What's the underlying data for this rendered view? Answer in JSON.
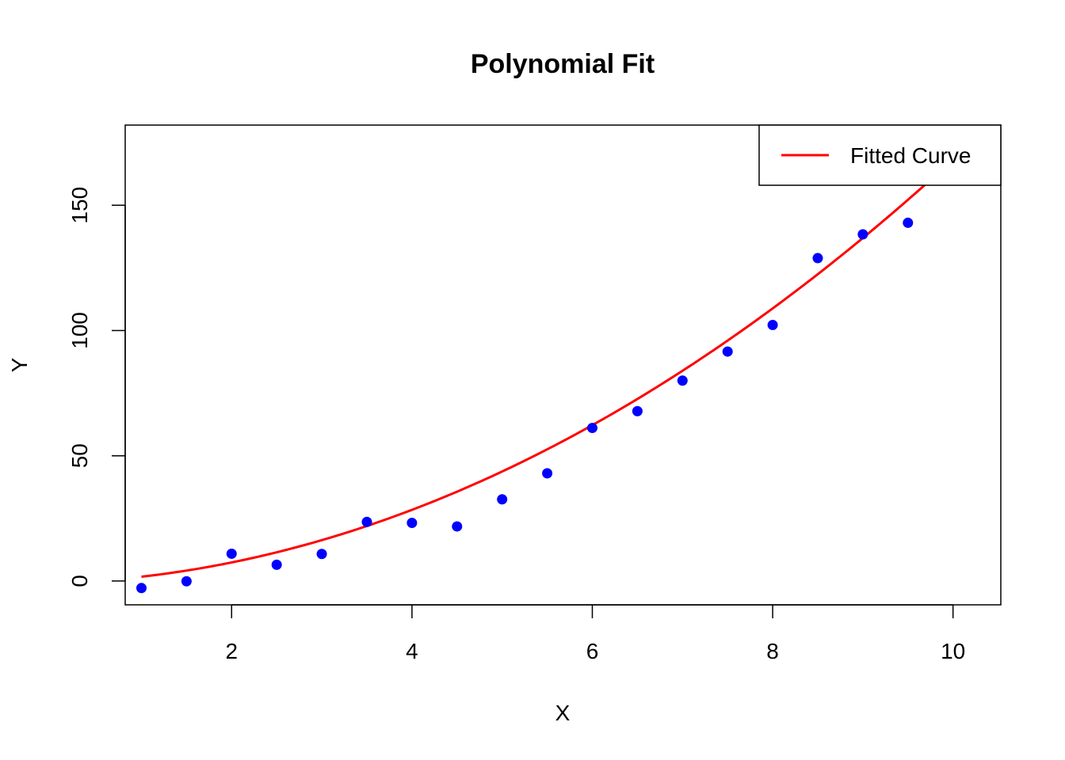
{
  "chart_data": {
    "type": "scatter",
    "title": "Polynomial Fit",
    "xlabel": "X",
    "ylabel": "Y",
    "xlim": [
      0.82,
      10.53
    ],
    "ylim": [
      -9.5,
      182
    ],
    "x_ticks": [
      2,
      4,
      6,
      8,
      10
    ],
    "y_ticks": [
      0,
      50,
      100,
      150
    ],
    "grid": false,
    "legend_position": "top-right",
    "series": [
      {
        "type": "scatter",
        "color": "#0000ff",
        "x": [
          1,
          1.5,
          2,
          2.5,
          3,
          3.5,
          4,
          4.5,
          5,
          5.5,
          6,
          6.5,
          7,
          7.5,
          8,
          8.5,
          9,
          9.5
        ],
        "y": [
          -2.8,
          -0.1,
          10.9,
          6.5,
          10.8,
          23.6,
          23.2,
          21.8,
          32.6,
          43.0,
          61.1,
          67.8,
          80.0,
          91.6,
          102.2,
          128.9,
          138.4,
          143.0
        ]
      },
      {
        "name": "Fitted Curve",
        "type": "line",
        "color": "#ff0000",
        "x_range": [
          1,
          10
        ],
        "coefficients": [
          -0.78,
          0.9,
          1.6
        ]
      }
    ]
  }
}
